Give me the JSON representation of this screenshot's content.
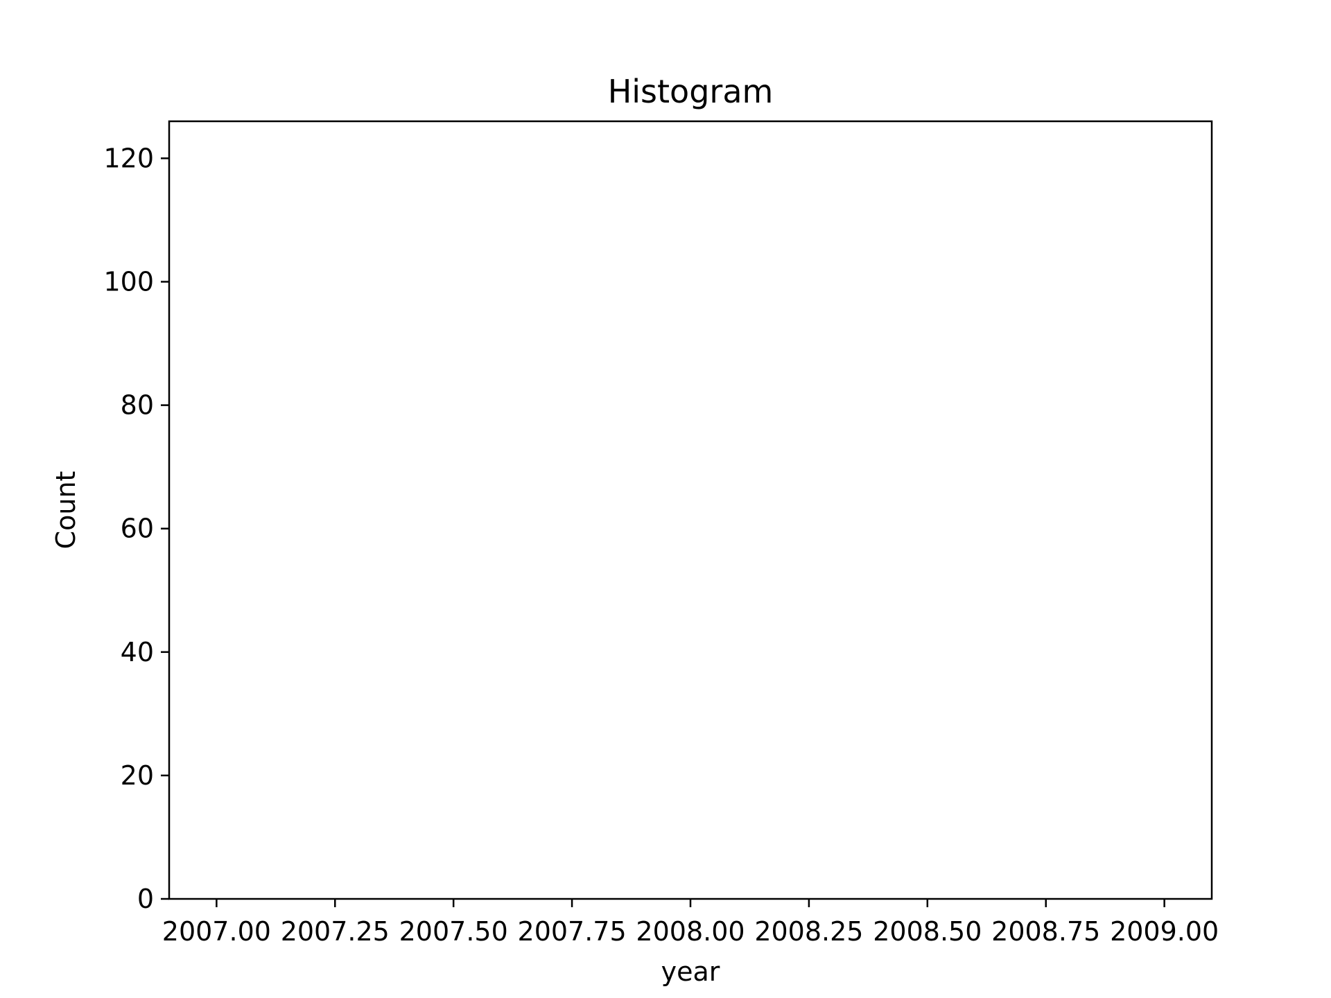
{
  "chart_data": {
    "type": "bar",
    "title": "Histogram",
    "xlabel": "year",
    "ylabel": "Count",
    "xlim": [
      2006.9,
      2009.1
    ],
    "ylim": [
      0,
      126
    ],
    "x_ticks": [
      2007.0,
      2007.25,
      2007.5,
      2007.75,
      2008.0,
      2008.25,
      2008.5,
      2008.75,
      2009.0
    ],
    "x_tick_labels": [
      "2007.00",
      "2007.25",
      "2007.50",
      "2007.75",
      "2008.00",
      "2008.25",
      "2008.50",
      "2008.75",
      "2009.00"
    ],
    "y_ticks": [
      0,
      20,
      40,
      60,
      80,
      100,
      120
    ],
    "y_tick_labels": [
      "0",
      "20",
      "40",
      "60",
      "80",
      "100",
      "120"
    ],
    "bins": [],
    "grid": false,
    "colors": {
      "axis": "#000000",
      "background": "#ffffff"
    }
  }
}
